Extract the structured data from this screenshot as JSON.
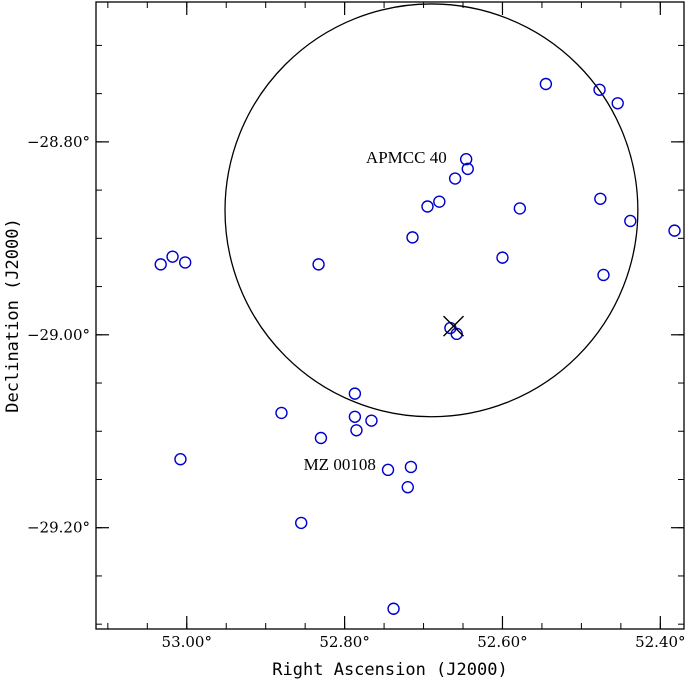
{
  "chart_data": {
    "type": "scatter",
    "xlabel": "Right Ascension (J2000)",
    "ylabel": "Declination (J2000)",
    "xlim": [
      53.115,
      52.37
    ],
    "ylim": [
      -29.305,
      -28.655
    ],
    "x_ticks": [
      {
        "value": 53.0,
        "label": "53.00°"
      },
      {
        "value": 52.8,
        "label": "52.80°"
      },
      {
        "value": 52.6,
        "label": "52.60°"
      },
      {
        "value": 52.4,
        "label": "52.40°"
      }
    ],
    "y_ticks": [
      {
        "value": -28.8,
        "label": "−28.80°"
      },
      {
        "value": -29.0,
        "label": "−29.00°"
      },
      {
        "value": -29.2,
        "label": "−29.20°"
      }
    ],
    "x_minor_step": 0.05,
    "y_minor_step": 0.05,
    "marker_color": "#0000cc",
    "points": [
      {
        "x": 52.545,
        "y": -28.74
      },
      {
        "x": 52.477,
        "y": -28.746
      },
      {
        "x": 52.454,
        "y": -28.76
      },
      {
        "x": 52.646,
        "y": -28.818
      },
      {
        "x": 52.644,
        "y": -28.828
      },
      {
        "x": 52.66,
        "y": -28.838
      },
      {
        "x": 52.68,
        "y": -28.862
      },
      {
        "x": 52.695,
        "y": -28.867
      },
      {
        "x": 52.578,
        "y": -28.869
      },
      {
        "x": 52.476,
        "y": -28.859
      },
      {
        "x": 52.438,
        "y": -28.882
      },
      {
        "x": 52.382,
        "y": -28.892
      },
      {
        "x": 52.714,
        "y": -28.899
      },
      {
        "x": 52.6,
        "y": -28.92
      },
      {
        "x": 52.472,
        "y": -28.938
      },
      {
        "x": 53.018,
        "y": -28.919
      },
      {
        "x": 53.033,
        "y": -28.927
      },
      {
        "x": 53.002,
        "y": -28.925
      },
      {
        "x": 52.833,
        "y": -28.927
      },
      {
        "x": 52.666,
        "y": -28.993
      },
      {
        "x": 52.658,
        "y": -28.999
      },
      {
        "x": 52.787,
        "y": -29.061
      },
      {
        "x": 52.787,
        "y": -29.085
      },
      {
        "x": 52.766,
        "y": -29.089
      },
      {
        "x": 52.785,
        "y": -29.099
      },
      {
        "x": 52.88,
        "y": -29.081
      },
      {
        "x": 52.83,
        "y": -29.107
      },
      {
        "x": 53.008,
        "y": -29.129
      },
      {
        "x": 52.745,
        "y": -29.14
      },
      {
        "x": 52.716,
        "y": -29.137
      },
      {
        "x": 52.72,
        "y": -29.158
      },
      {
        "x": 52.855,
        "y": -29.195
      },
      {
        "x": 52.738,
        "y": -29.284
      }
    ],
    "circle": {
      "center_x": 52.69,
      "center_y": -28.871,
      "radius_deg": 0.214
    },
    "target": {
      "x": 52.662,
      "y": -28.991
    },
    "annotations": [
      {
        "text": "APMCC 40",
        "x": 52.773,
        "y": -28.822
      },
      {
        "text": "MZ 00108",
        "x": 52.852,
        "y": -29.14
      }
    ]
  }
}
